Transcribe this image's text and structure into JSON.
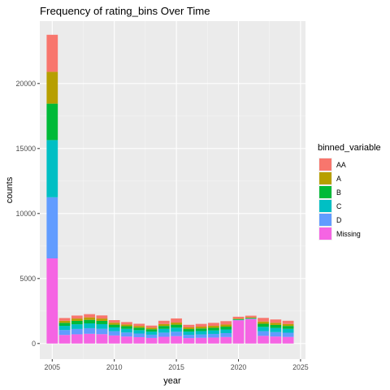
{
  "chart_data": {
    "type": "bar",
    "stacked": true,
    "title": "Frequency of rating_bins Over Time",
    "xlabel": "year",
    "ylabel": "counts",
    "x": [
      2005,
      2006,
      2007,
      2008,
      2009,
      2010,
      2011,
      2012,
      2013,
      2014,
      2015,
      2016,
      2017,
      2018,
      2019,
      2020,
      2021,
      2022,
      2023,
      2024
    ],
    "x_ticks": [
      2005,
      2010,
      2015,
      2020,
      2025
    ],
    "xlim": [
      2004,
      2025.4
    ],
    "y_ticks": [
      0,
      5000,
      10000,
      15000,
      20000
    ],
    "ylim": [
      -1200,
      24800
    ],
    "grid": true,
    "legend": {
      "title": "binned_variable",
      "position": "right"
    },
    "series": [
      {
        "name": "Missing",
        "color": "#F564E3",
        "values": [
          6550,
          660,
          710,
          750,
          720,
          620,
          540,
          490,
          430,
          520,
          570,
          420,
          440,
          460,
          500,
          1790,
          1880,
          590,
          540,
          510
        ]
      },
      {
        "name": "D",
        "color": "#619CFF",
        "values": [
          4700,
          380,
          410,
          430,
          410,
          330,
          310,
          280,
          250,
          320,
          340,
          250,
          260,
          280,
          300,
          20,
          20,
          360,
          340,
          320
        ]
      },
      {
        "name": "C",
        "color": "#00BFC4",
        "values": [
          4400,
          320,
          360,
          370,
          360,
          290,
          280,
          260,
          240,
          290,
          310,
          250,
          260,
          270,
          280,
          20,
          20,
          330,
          320,
          300
        ]
      },
      {
        "name": "B",
        "color": "#00BA38",
        "values": [
          2800,
          230,
          260,
          270,
          250,
          210,
          200,
          190,
          180,
          220,
          230,
          190,
          200,
          200,
          220,
          40,
          40,
          240,
          230,
          220
        ]
      },
      {
        "name": "A",
        "color": "#B79F00",
        "values": [
          2450,
          160,
          180,
          190,
          180,
          150,
          140,
          130,
          120,
          150,
          160,
          130,
          140,
          150,
          160,
          50,
          50,
          170,
          160,
          150
        ]
      },
      {
        "name": "AA",
        "color": "#F8766D",
        "values": [
          2850,
          210,
          230,
          250,
          240,
          200,
          180,
          170,
          160,
          250,
          320,
          200,
          210,
          230,
          260,
          140,
          130,
          280,
          260,
          250
        ]
      }
    ],
    "legend_order": [
      "AA",
      "A",
      "B",
      "C",
      "D",
      "Missing"
    ]
  }
}
